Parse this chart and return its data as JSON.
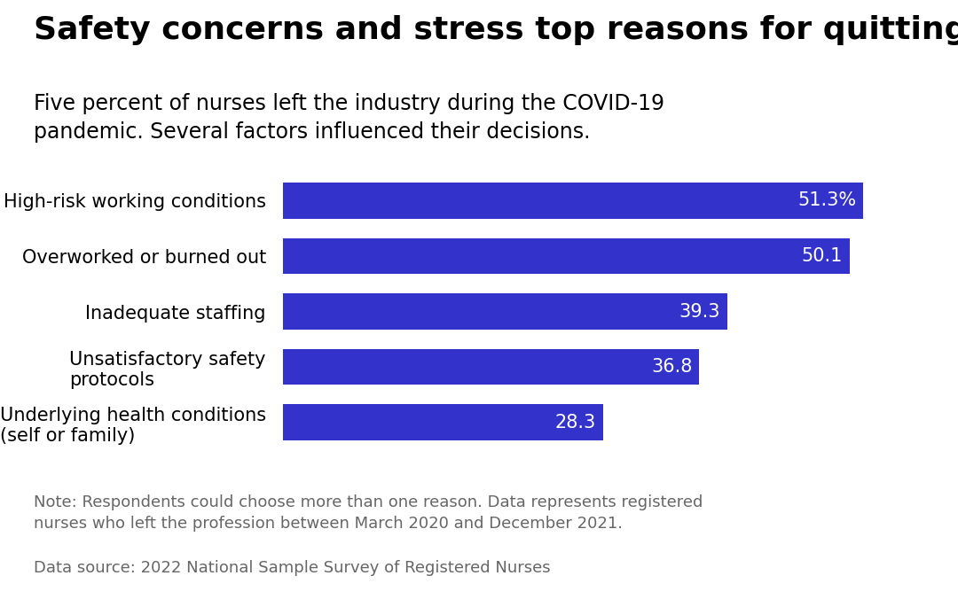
{
  "title": "Safety concerns and stress top reasons for quitting",
  "subtitle": "Five percent of nurses left the industry during the COVID-19\npandemic. Several factors influenced their decisions.",
  "categories": [
    "High-risk working conditions",
    "Overworked or burned out",
    "Inadequate staffing",
    "Unsatisfactory safety\nprotocols",
    "Underlying health conditions\n(self or family)"
  ],
  "values": [
    51.3,
    50.1,
    39.3,
    36.8,
    28.3
  ],
  "labels": [
    "51.3%",
    "50.1",
    "39.3",
    "36.8",
    "28.3"
  ],
  "bar_color": "#3333cc",
  "label_color": "#ffffff",
  "title_color": "#000000",
  "subtitle_color": "#000000",
  "note_text": "Note: Respondents could choose more than one reason. Data represents registered\nnurses who left the profession between March 2020 and December 2021.",
  "source_text": "Data source: 2022 National Sample Survey of Registered Nurses",
  "note_color": "#666666",
  "background_color": "#ffffff",
  "xlim": [
    0,
    58
  ],
  "title_fontsize": 26,
  "subtitle_fontsize": 17,
  "category_fontsize": 15,
  "label_fontsize": 15,
  "note_fontsize": 13
}
